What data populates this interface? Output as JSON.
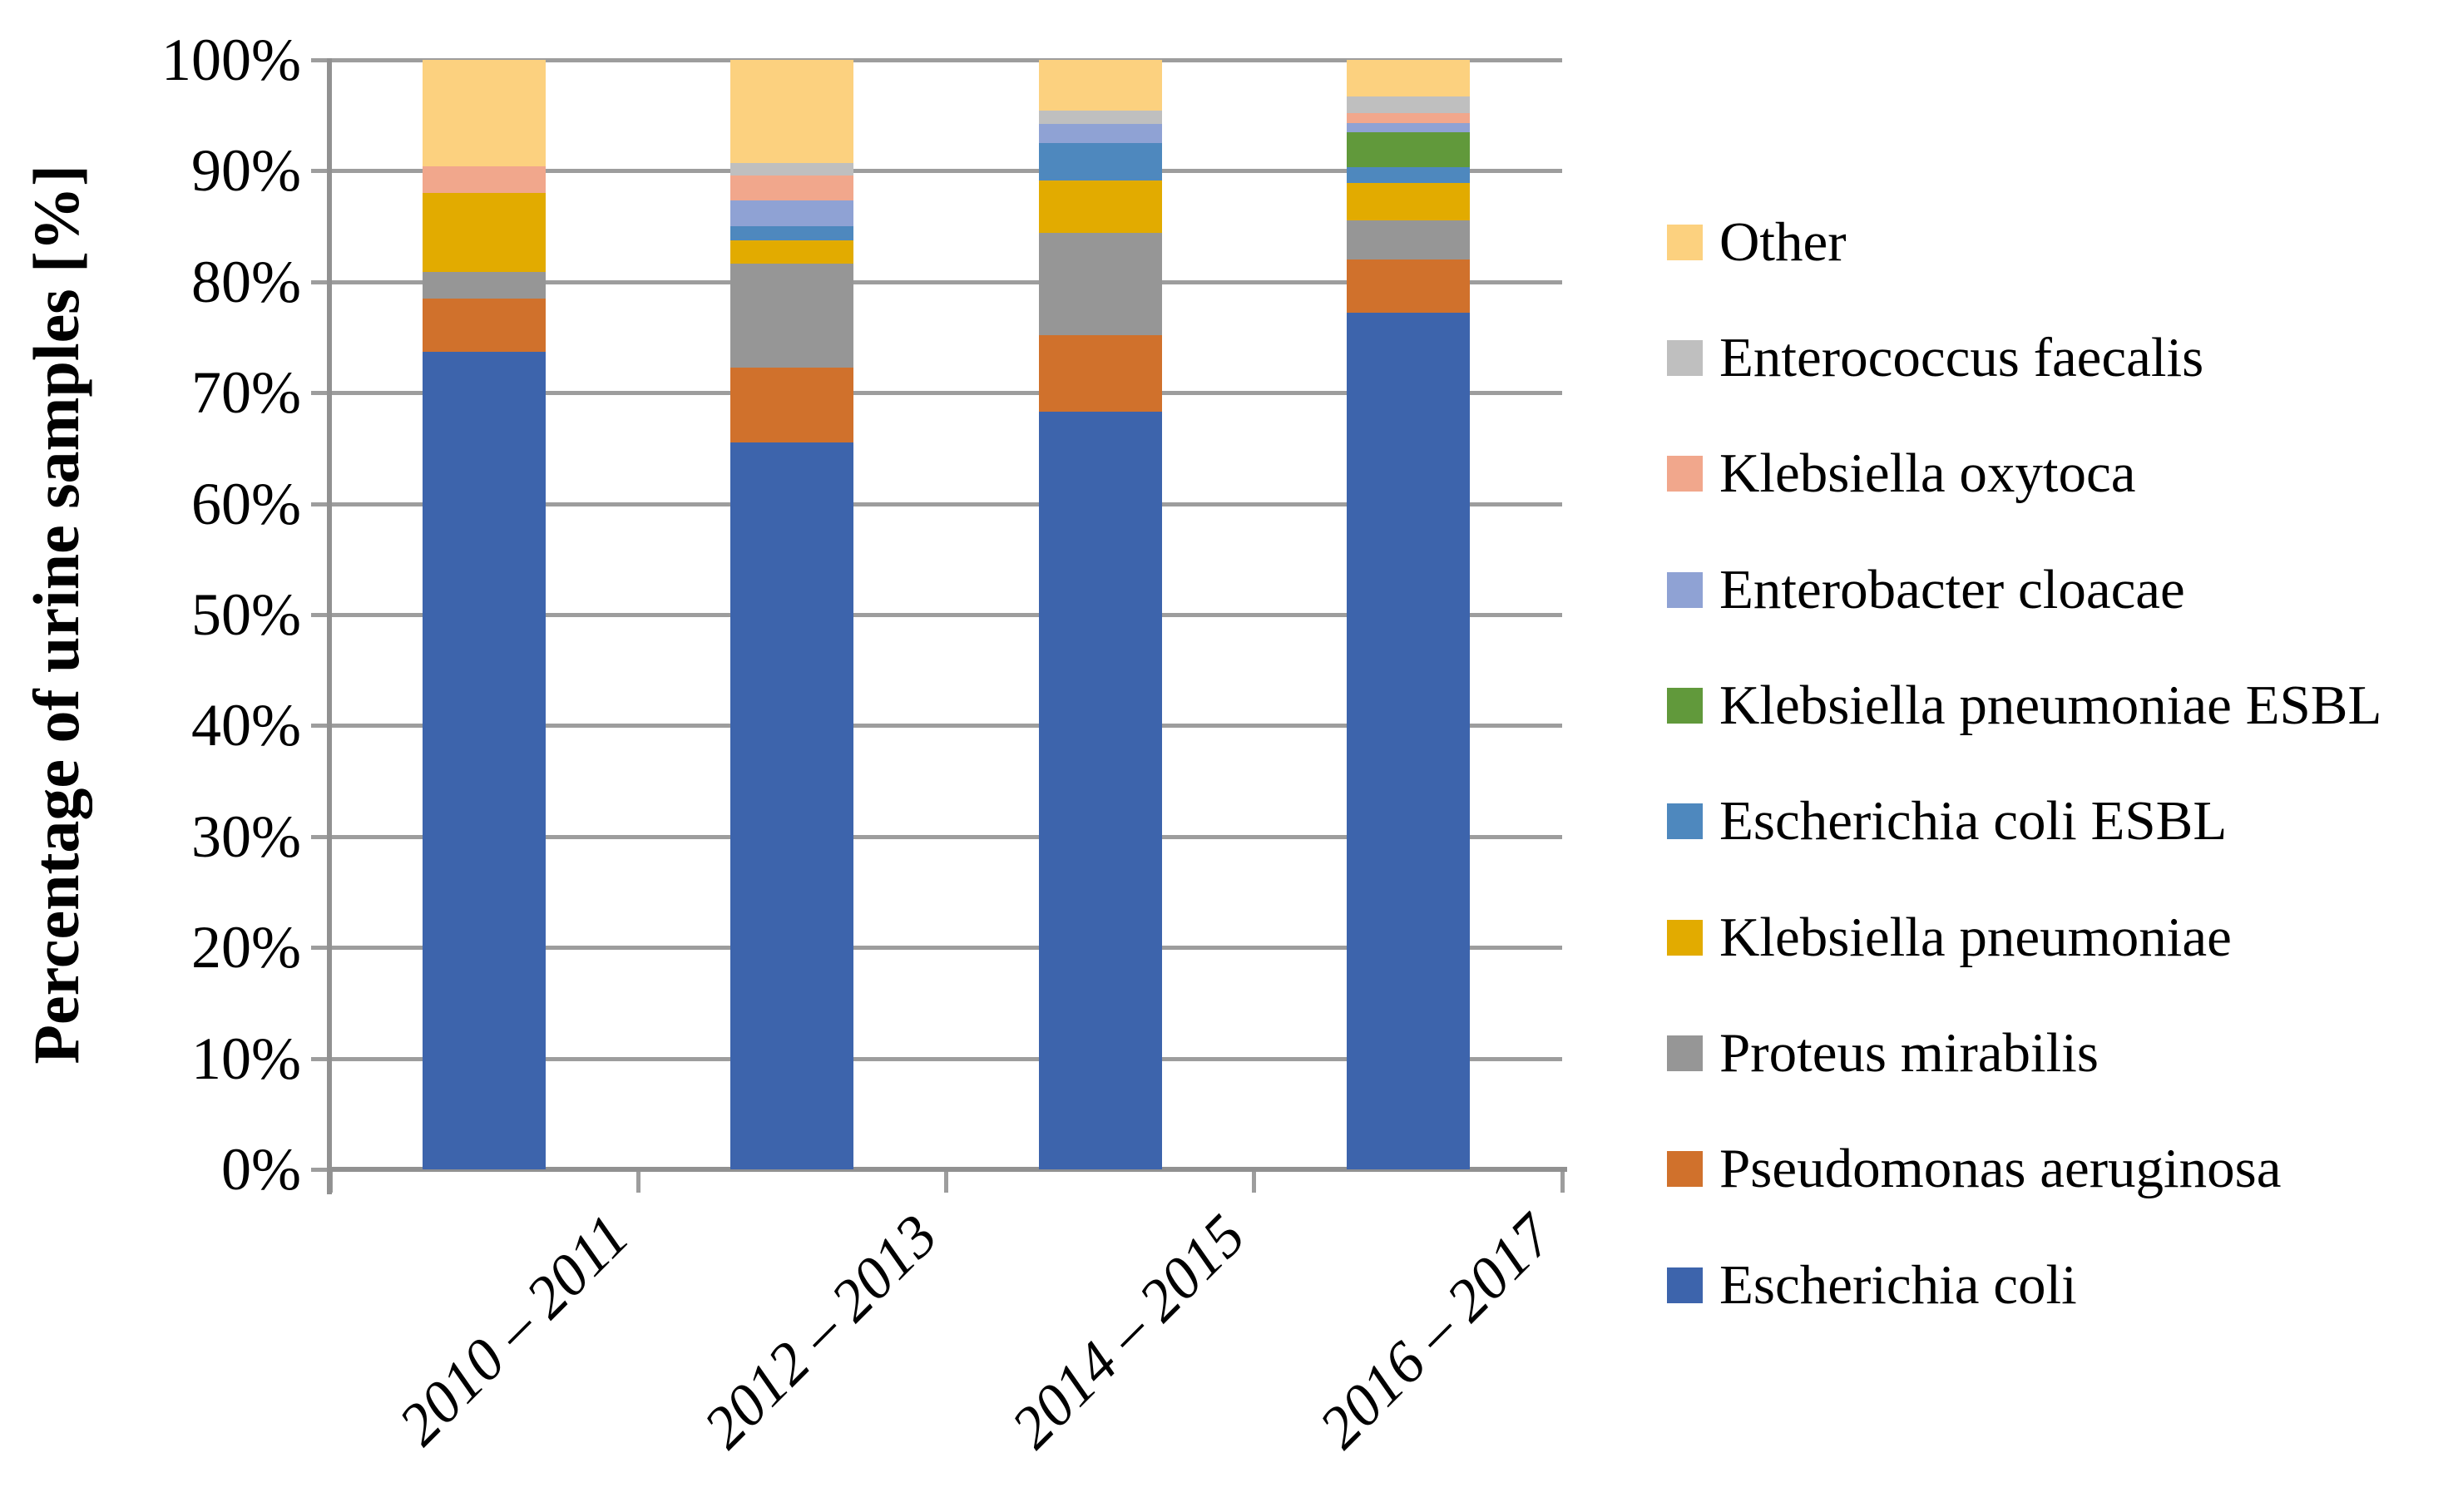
{
  "figure": {
    "background": "#FFFFFF",
    "grid_color": "#9D9D9D",
    "axis_color": "#919191"
  },
  "y_axis": {
    "title": "Percentage of urine samples [%]",
    "tick_labels": [
      "0%",
      "10%",
      "20%",
      "30%",
      "40%",
      "50%",
      "60%",
      "70%",
      "80%",
      "90%",
      "100%"
    ]
  },
  "chart_data": {
    "type": "bar",
    "stacked": true,
    "title": "",
    "xlabel": "",
    "ylabel": "Percentage of urine samples [%]",
    "ylim": [
      0,
      100
    ],
    "grid": "horizontal",
    "legend_position": "right",
    "categories": [
      "2010 – 2011",
      "2012 – 2013",
      "2014 – 2015",
      "2016 – 2017"
    ],
    "series": [
      {
        "name": "Escherichia coli",
        "color": "#3D64AC",
        "values": [
          73.7,
          65.5,
          68.3,
          77.2
        ]
      },
      {
        "name": "Pseudomonas aeruginosa",
        "color": "#D0712C",
        "values": [
          4.8,
          6.8,
          6.9,
          4.8
        ]
      },
      {
        "name": "Proteus mirabilis",
        "color": "#969696",
        "values": [
          2.4,
          9.3,
          9.2,
          3.5
        ]
      },
      {
        "name": "Klebsiella pneumoniae",
        "color": "#E2AB00",
        "values": [
          7.1,
          2.1,
          4.7,
          3.4
        ]
      },
      {
        "name": "Escherichia coli ESBL",
        "color": "#4E88BE",
        "values": [
          0,
          1.3,
          3.4,
          1.4
        ]
      },
      {
        "name": "Klebsiella pneumoniae ESBL",
        "color": "#61993B",
        "values": [
          0,
          0,
          0,
          3.2
        ]
      },
      {
        "name": "Enterobacter cloacae",
        "color": "#8FA2D4",
        "values": [
          0,
          2.3,
          1.7,
          0.8
        ]
      },
      {
        "name": "Klebsiella oxytoca",
        "color": "#F1A78C",
        "values": [
          2.4,
          2.3,
          0,
          0.9
        ]
      },
      {
        "name": "Enterococcus faecalis",
        "color": "#BFBFBF",
        "values": [
          0,
          1.1,
          1.2,
          1.5
        ]
      },
      {
        "name": "Other",
        "color": "#FCD17F",
        "values": [
          9.6,
          9.3,
          4.6,
          3.3
        ]
      }
    ],
    "legend_order_top_to_bottom": [
      "Other",
      "Enterococcus faecalis",
      "Klebsiella oxytoca",
      "Enterobacter cloacae",
      "Klebsiella pneumoniae ESBL",
      "Escherichia coli ESBL",
      "Klebsiella pneumoniae",
      "Proteus mirabilis",
      "Pseudomonas aeruginosa",
      "Escherichia coli"
    ]
  }
}
